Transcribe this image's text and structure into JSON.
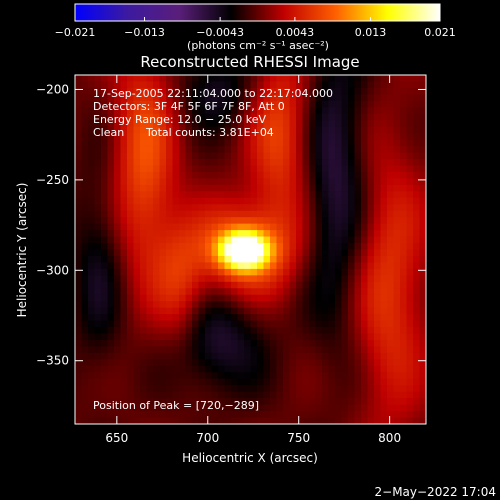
{
  "chart_data": {
    "type": "heatmap",
    "title": "Reconstructed RHESSI Image",
    "xlabel": "Heliocentric X (arcsec)",
    "ylabel": "Heliocentric Y (arcsec)",
    "xlim": [
      627,
      820
    ],
    "ylim": [
      -385,
      -192
    ],
    "xticks": [
      650,
      700,
      750,
      800
    ],
    "yticks": [
      -200,
      -250,
      -300,
      -350
    ],
    "colorbar": {
      "range": [
        -0.021,
        0.021
      ],
      "ticks": [
        -0.021,
        -0.013,
        -0.0043,
        0.0043,
        0.013,
        0.021
      ],
      "tick_labels": [
        "−0.021",
        "−0.013",
        "−0.0043",
        "0.0043",
        "0.013",
        "0.021"
      ],
      "units": "(photons cm⁻² s⁻¹ asec⁻²)",
      "colors": [
        "#0000ff",
        "#3c1aa0",
        "#5a1e7a",
        "#000000",
        "#c00000",
        "#ff6000",
        "#ffff00",
        "#ffffff"
      ]
    },
    "annotations": {
      "time_range": "17-Sep-2005 22:11:04.000 to 22:17:04.000",
      "detectors": "Detectors: 3F 4F 5F 6F 7F 8F, Att 0",
      "energy": "Energy Range: 12.0 − 25.0 keV",
      "method": "Clean",
      "counts": "Total counts: 3.81E+04",
      "peak": "Position of Peak = [720,−289]"
    },
    "peak": [
      720,
      -289
    ],
    "sources": [
      {
        "x": 720,
        "y": -289,
        "sx": 9,
        "sy": 7,
        "amp": 0.021
      },
      {
        "x": 720,
        "y": -289,
        "sx": 20,
        "sy": 18,
        "amp": 0.009
      },
      {
        "x": 665,
        "y": -240,
        "sx": 12,
        "sy": 45,
        "amp": 0.0075
      },
      {
        "x": 740,
        "y": -225,
        "sx": 12,
        "sy": 35,
        "amp": 0.0065
      },
      {
        "x": 685,
        "y": -310,
        "sx": 10,
        "sy": 25,
        "amp": 0.005
      },
      {
        "x": 800,
        "y": -310,
        "sx": 14,
        "sy": 55,
        "amp": 0.006
      },
      {
        "x": 705,
        "y": -340,
        "sx": 18,
        "sy": 20,
        "amp": -0.0055
      },
      {
        "x": 770,
        "y": -250,
        "sx": 12,
        "sy": 60,
        "amp": -0.006
      },
      {
        "x": 640,
        "y": -300,
        "sx": 10,
        "sy": 40,
        "amp": -0.004
      },
      {
        "x": 705,
        "y": -200,
        "sx": 14,
        "sy": 15,
        "amp": -0.0045
      }
    ]
  },
  "footer": {
    "date": "2−May−2022 17:04"
  }
}
